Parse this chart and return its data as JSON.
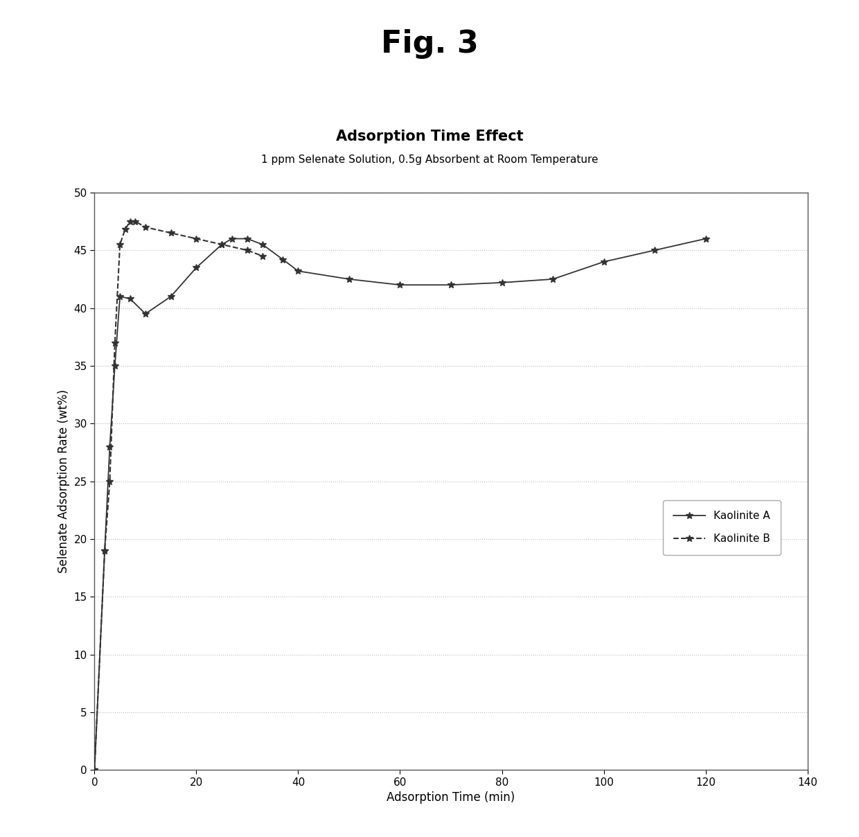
{
  "title_fig": "Fig. 3",
  "title_chart": "Adsorption Time Effect",
  "subtitle": "1 ppm Selenate Solution, 0.5g Absorbent at Room Temperature",
  "xlabel": "Adsorption Time (min)",
  "ylabel": "Selenate Adsorption Rate (wt%)",
  "xlim": [
    0,
    140
  ],
  "ylim": [
    0,
    50
  ],
  "xticks": [
    0,
    20,
    40,
    60,
    80,
    100,
    120,
    140
  ],
  "yticks": [
    0,
    5,
    10,
    15,
    20,
    25,
    30,
    35,
    40,
    45,
    50
  ],
  "kaolinite_A_x": [
    0,
    2,
    3,
    4,
    5,
    7,
    10,
    15,
    20,
    25,
    27,
    30,
    33,
    37,
    40,
    50,
    60,
    70,
    80,
    90,
    100,
    110,
    120
  ],
  "kaolinite_A_y": [
    0,
    19,
    28,
    35,
    41,
    40.8,
    39.5,
    41.0,
    43.5,
    45.5,
    46.0,
    46.0,
    45.5,
    44.2,
    43.2,
    42.5,
    42.0,
    42.0,
    42.2,
    42.5,
    44.0,
    45.0,
    46.0
  ],
  "kaolinite_B_x": [
    0,
    2,
    3,
    4,
    5,
    6,
    7,
    8,
    10,
    15,
    20,
    25,
    30,
    33
  ],
  "kaolinite_B_y": [
    0,
    19,
    25,
    37,
    45.5,
    46.8,
    47.5,
    47.5,
    47.0,
    46.5,
    46.0,
    45.5,
    45.0,
    44.5
  ],
  "color_A": "#333333",
  "color_B": "#333333",
  "marker": "*",
  "linestyle_A": "-",
  "linestyle_B": "--",
  "legend_A": "Kaolinite A",
  "legend_B": "Kaolinite B",
  "bg_color": "#ffffff",
  "grid_color": "#bbbbbb",
  "title_fig_fontsize": 32,
  "title_chart_fontsize": 15,
  "subtitle_fontsize": 11,
  "axis_label_fontsize": 12,
  "tick_fontsize": 11,
  "legend_fontsize": 11
}
